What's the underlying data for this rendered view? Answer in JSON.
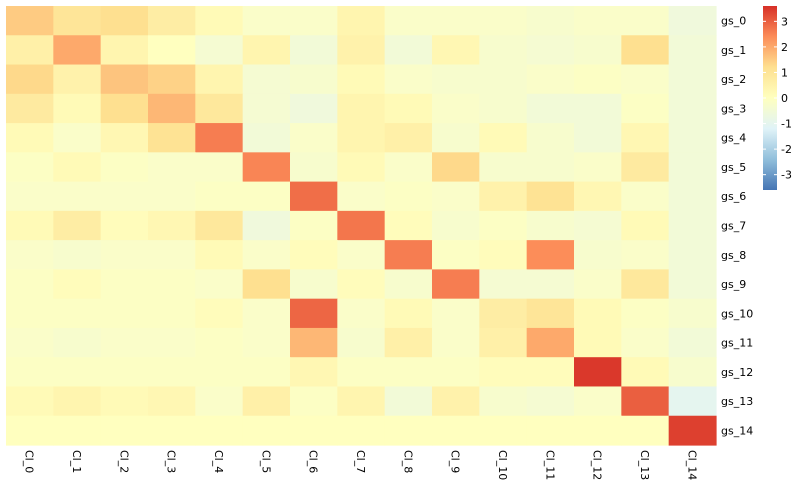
{
  "chart_data": {
    "type": "heatmap",
    "rows": [
      "gs_0",
      "gs_1",
      "gs_2",
      "gs_3",
      "gs_4",
      "gs_5",
      "gs_6",
      "gs_7",
      "gs_8",
      "gs_9",
      "gs_10",
      "gs_11",
      "gs_12",
      "gs_13",
      "gs_14"
    ],
    "columns": [
      "Cl_0",
      "Cl_1",
      "Cl_2",
      "Cl_3",
      "Cl_4",
      "Cl_5",
      "Cl_6",
      "Cl_7",
      "Cl_8",
      "Cl_9",
      "Cl_10",
      "Cl_11",
      "Cl_12",
      "Cl_13",
      "Cl_14"
    ],
    "values": [
      [
        1.5,
        1.0,
        1.2,
        0.7,
        0.2,
        -0.2,
        -0.2,
        0.4,
        -0.2,
        -0.2,
        -0.2,
        -0.3,
        -0.2,
        -0.2,
        -0.6
      ],
      [
        0.6,
        2.0,
        0.4,
        0.0,
        -0.4,
        0.4,
        -0.5,
        0.5,
        -0.5,
        0.3,
        -0.3,
        -0.4,
        -0.3,
        1.2,
        -0.5
      ],
      [
        1.3,
        0.5,
        1.6,
        1.4,
        0.4,
        -0.4,
        -0.3,
        0.2,
        -0.2,
        -0.3,
        -0.3,
        -0.2,
        -0.1,
        -0.2,
        -0.5
      ],
      [
        0.8,
        0.2,
        1.2,
        1.8,
        0.9,
        -0.4,
        -0.6,
        0.4,
        0.2,
        -0.2,
        -0.3,
        -0.5,
        -0.5,
        -0.1,
        -0.5
      ],
      [
        0.2,
        -0.2,
        0.3,
        1.1,
        2.6,
        -0.5,
        -0.2,
        0.4,
        0.6,
        -0.3,
        0.2,
        -0.3,
        -0.5,
        0.3,
        -0.5
      ],
      [
        -0.1,
        0.2,
        -0.1,
        -0.2,
        -0.2,
        2.5,
        -0.3,
        0.2,
        -0.2,
        1.3,
        -0.3,
        -0.3,
        -0.2,
        0.8,
        -0.5
      ],
      [
        -0.2,
        -0.2,
        -0.2,
        -0.2,
        -0.1,
        -0.1,
        2.8,
        -0.2,
        -0.1,
        -0.2,
        0.5,
        1.1,
        0.3,
        -0.2,
        -0.5
      ],
      [
        0.2,
        0.7,
        0.1,
        0.3,
        0.9,
        -0.6,
        -0.1,
        2.7,
        0.1,
        -0.3,
        -0.1,
        -0.3,
        -0.4,
        0.2,
        -0.5
      ],
      [
        -0.2,
        -0.3,
        -0.2,
        -0.2,
        0.2,
        -0.2,
        0.1,
        -0.2,
        2.6,
        -0.1,
        0.1,
        2.4,
        -0.3,
        -0.2,
        -0.5
      ],
      [
        -0.1,
        0.1,
        -0.1,
        -0.1,
        -0.2,
        1.2,
        -0.3,
        0.1,
        -0.3,
        2.6,
        -0.4,
        -0.4,
        -0.2,
        0.9,
        -0.5
      ],
      [
        -0.1,
        -0.1,
        -0.1,
        -0.1,
        0.1,
        -0.2,
        2.9,
        -0.2,
        0.2,
        -0.2,
        0.7,
        1.0,
        0.2,
        -0.1,
        -0.3
      ],
      [
        -0.2,
        -0.3,
        -0.2,
        -0.2,
        -0.1,
        -0.2,
        1.8,
        -0.3,
        0.6,
        -0.2,
        0.6,
        2.0,
        0.2,
        -0.2,
        -0.5
      ],
      [
        -0.1,
        -0.1,
        -0.1,
        -0.1,
        -0.1,
        -0.1,
        0.3,
        -0.1,
        -0.1,
        -0.1,
        0.1,
        0.1,
        3.5,
        0.2,
        -0.3
      ],
      [
        0.2,
        0.4,
        0.2,
        0.3,
        -0.2,
        0.6,
        -0.1,
        0.4,
        -0.5,
        0.5,
        -0.3,
        -0.4,
        -0.2,
        3.0,
        -1.0
      ],
      [
        0.0,
        0.0,
        0.0,
        0.0,
        0.0,
        0.0,
        0.0,
        0.0,
        0.0,
        0.0,
        0.0,
        0.0,
        0.0,
        0.0,
        3.4
      ]
    ],
    "colorbar": {
      "ticks": [
        3,
        2,
        1,
        0,
        -1,
        -2,
        -3
      ],
      "range": [
        -3.6,
        3.6
      ]
    },
    "colorscale": [
      "#4575b4",
      "#91bfdb",
      "#e0f3f8",
      "#ffffbf",
      "#fee090",
      "#fc8d59",
      "#d73027"
    ]
  }
}
